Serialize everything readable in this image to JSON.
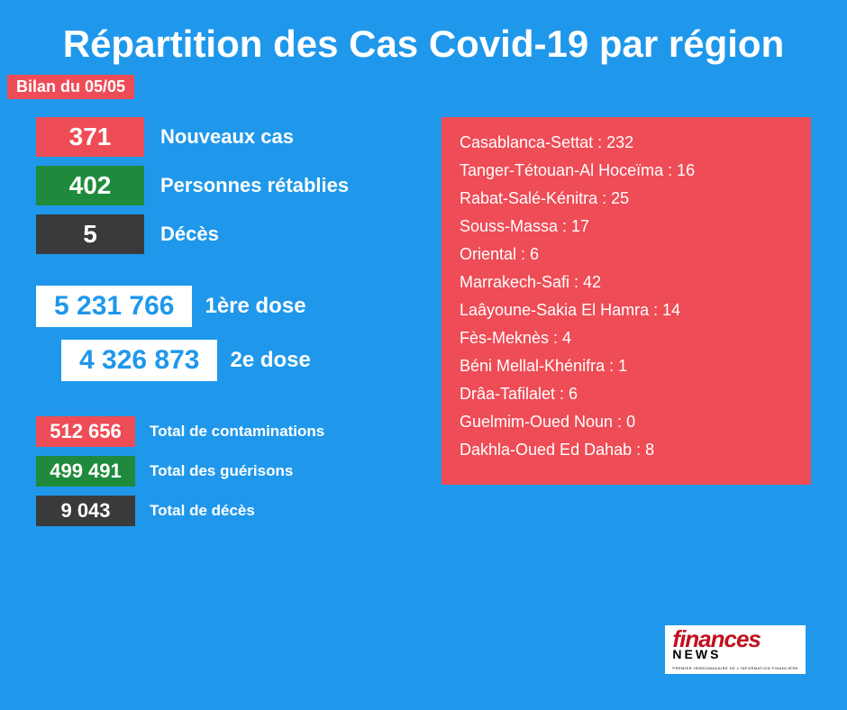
{
  "style": {
    "background_color": "#1f98eb",
    "title_color": "#ffffff",
    "title_fontsize": 42,
    "bilan_bg": "#ee4c56",
    "bilan_color": "#ffffff",
    "bilan_fontsize": 18,
    "stat_box_fontsize": 28,
    "stat_label_fontsize": 22,
    "stat_label_color": "#ffffff",
    "dose_box_bg": "#ffffff",
    "dose_box_color": "#1f98eb",
    "dose_box_fontsize": 30,
    "dose_label_fontsize": 24,
    "dose_label_color": "#ffffff",
    "tot_box_fontsize": 22,
    "tot_label_fontsize": 17,
    "tot_label_color": "#ffffff",
    "regions_bg": "#ee4c56",
    "regions_color": "#ffffff",
    "regions_fontsize": 18,
    "logo_bg": "#ffffff",
    "logo_finances_color": "#c01020",
    "logo_news_color": "#000000"
  },
  "title": "Répartition des Cas Covid-19 par région",
  "bilan": "Bilan du 05/05",
  "daily": [
    {
      "value": "371",
      "label": "Nouveaux cas",
      "bg": "#ee4c56",
      "fg": "#ffffff"
    },
    {
      "value": "402",
      "label": "Personnes rétablies",
      "bg": "#1f8a3b",
      "fg": "#ffffff"
    },
    {
      "value": "5",
      "label": "Décès",
      "bg": "#3a3a3a",
      "fg": "#ffffff"
    }
  ],
  "doses": [
    {
      "value": "5 231 766",
      "label": "1ère dose"
    },
    {
      "value": "4 326 873",
      "label": "2e dose"
    }
  ],
  "totals": [
    {
      "value": "512 656",
      "label": "Total de contaminations",
      "bg": "#ee4c56",
      "fg": "#ffffff"
    },
    {
      "value": "499 491",
      "label": "Total des guérisons",
      "bg": "#1f8a3b",
      "fg": "#ffffff"
    },
    {
      "value": "9 043",
      "label": "Total de décès",
      "bg": "#3a3a3a",
      "fg": "#ffffff"
    }
  ],
  "regions": [
    "Casablanca-Settat : 232",
    "Tanger-Tétouan-Al Hoceïma : 16",
    "Rabat-Salé-Kénitra : 25",
    "Souss-Massa : 17",
    "Oriental : 6",
    "Marrakech-Safi : 42",
    "Laâyoune-Sakia El Hamra : 14",
    "Fès-Meknès : 4",
    "Béni Mellal-Khénifra : 1",
    "Drâa-Tafilalet : 6",
    "Guelmim-Oued Noun : 0",
    "Dakhla-Oued Ed Dahab : 8"
  ],
  "logo": {
    "line1": "finances",
    "line2": "NEWS",
    "line3": "PREMIER HEBDOMADAIRE DE L'INFORMATION FINANCIÈRE"
  }
}
